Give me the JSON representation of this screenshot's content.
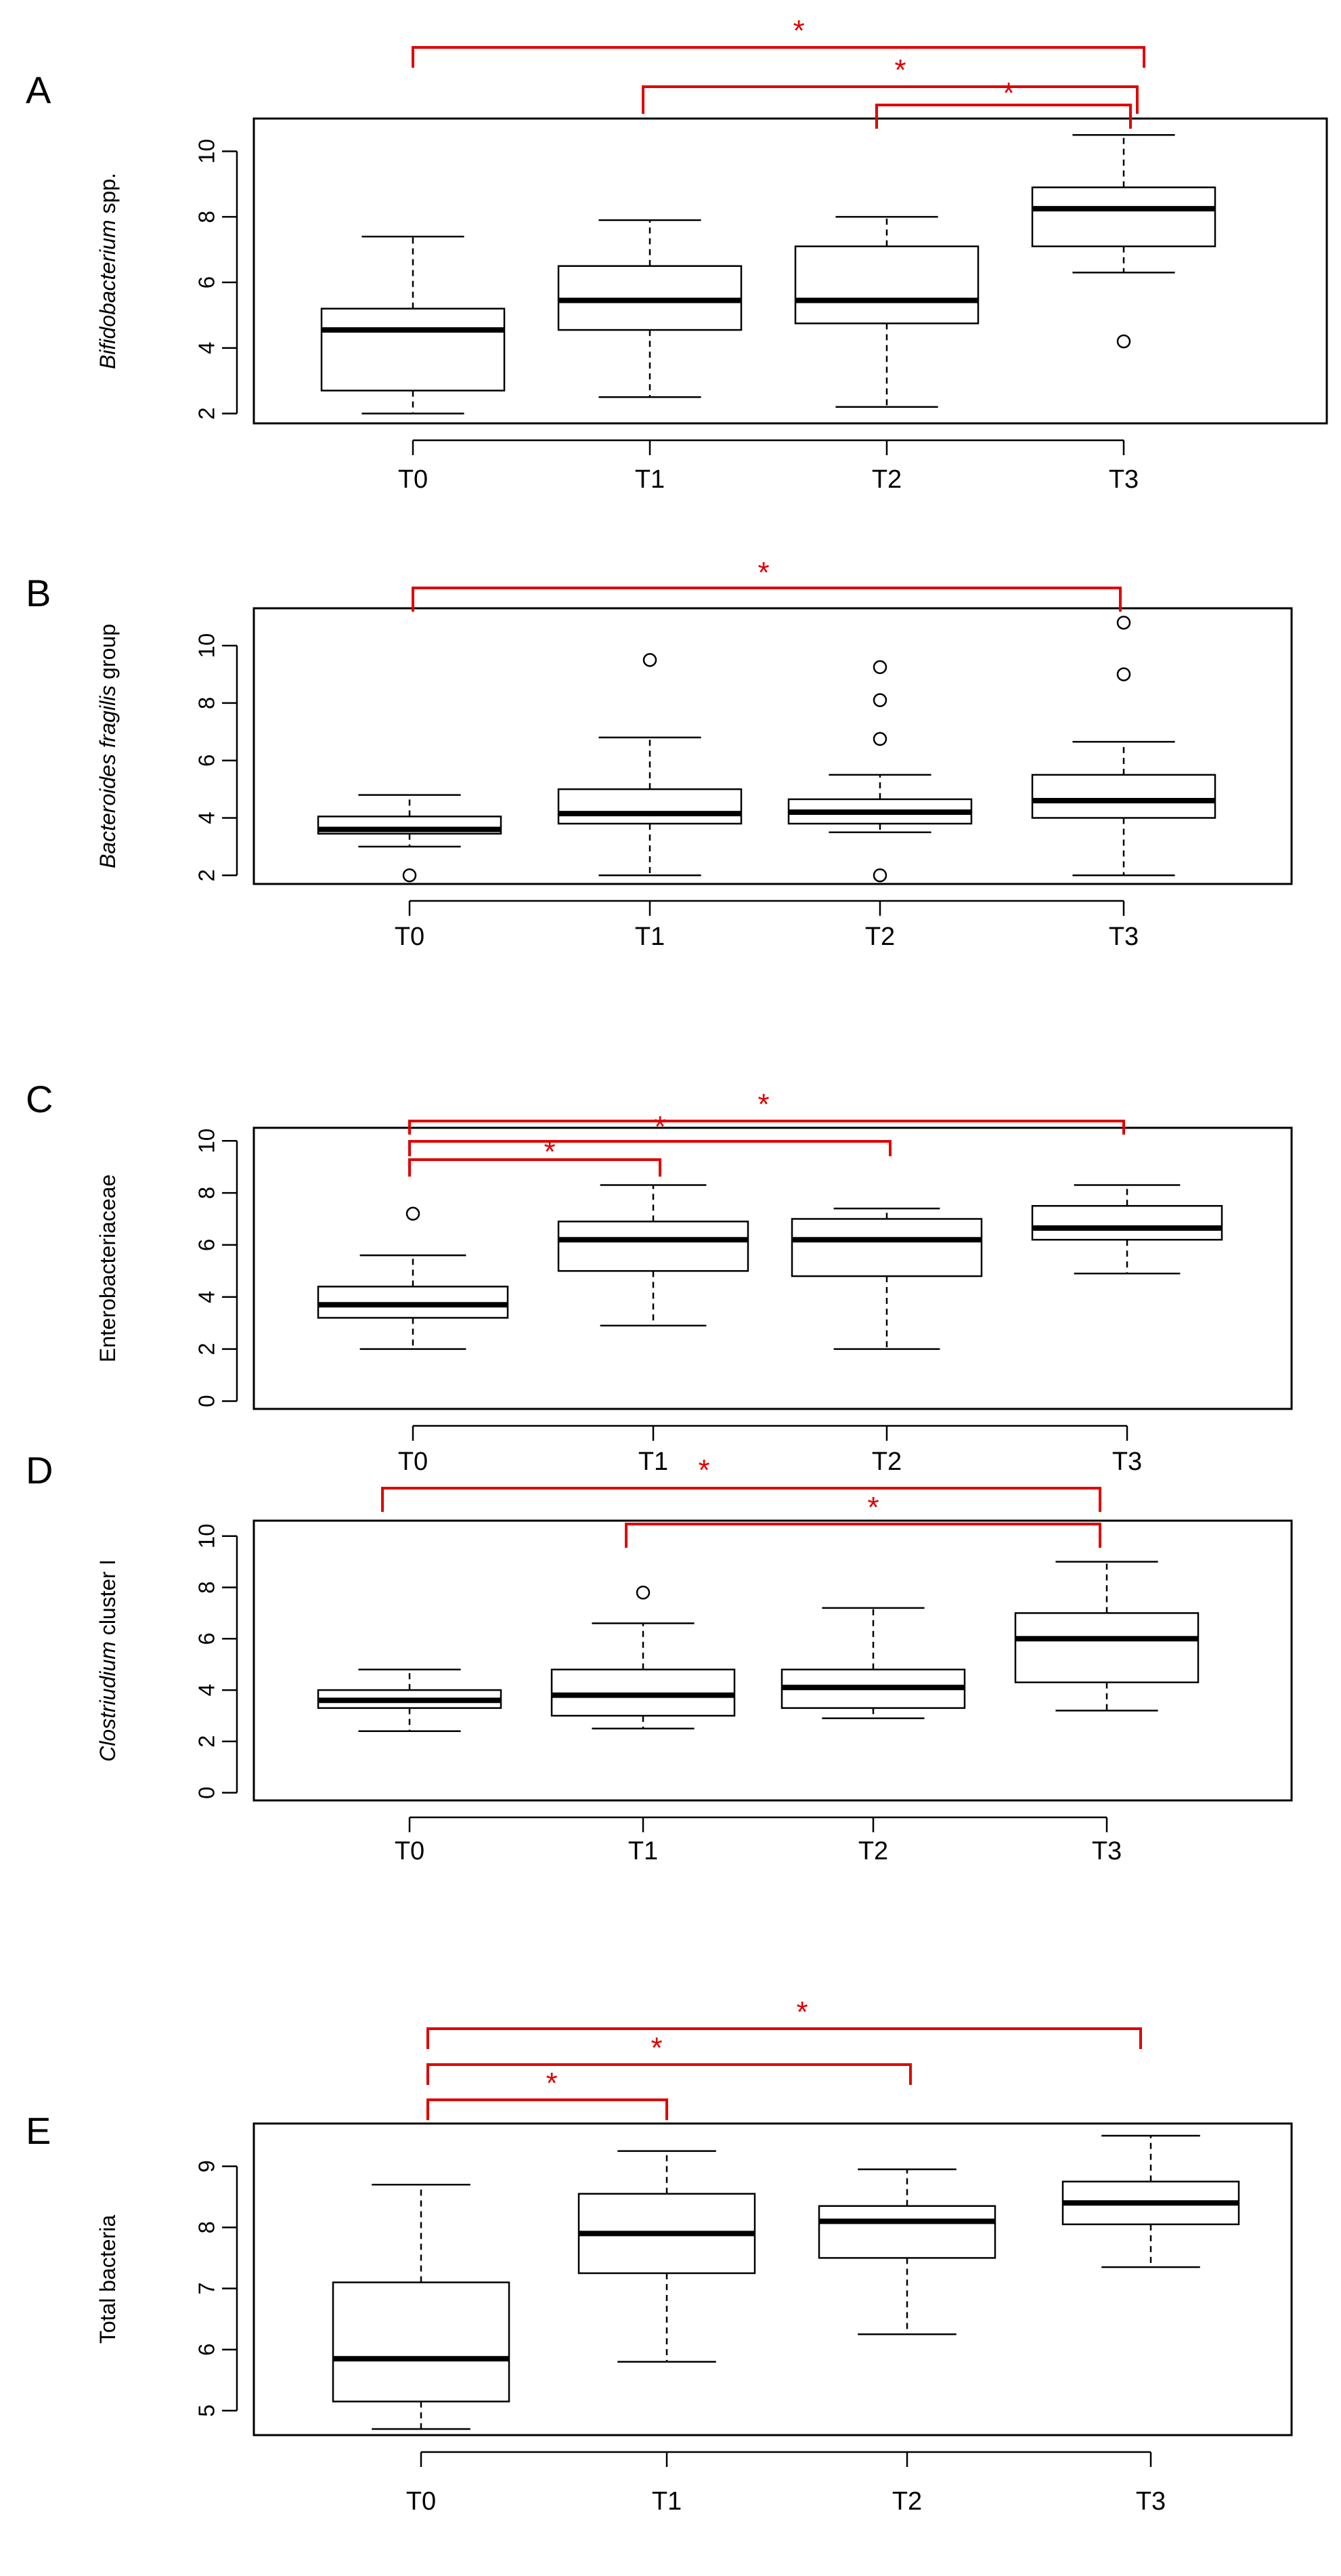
{
  "figure_description": "Five box-plot panels of bacterial counts at time points T0-T3",
  "colors": {
    "significance": "#e00000",
    "box": "#000000"
  },
  "chart_data": [
    {
      "type": "box",
      "panel": "A",
      "ylabel_italic": "Bifidobacterium",
      "ylabel_rest": " spp.",
      "categories": [
        "T0",
        "T1",
        "T2",
        "T3"
      ],
      "ylim": [
        1.7,
        11.0
      ],
      "yticks": [
        2,
        4,
        6,
        8,
        10
      ],
      "boxes": [
        {
          "min": 2.0,
          "q1": 2.7,
          "median": 4.55,
          "q3": 5.2,
          "max": 7.4,
          "outliers": []
        },
        {
          "min": 2.5,
          "q1": 4.55,
          "median": 5.45,
          "q3": 6.5,
          "max": 7.9,
          "outliers": []
        },
        {
          "min": 2.2,
          "q1": 4.75,
          "median": 5.45,
          "q3": 7.1,
          "max": 8.0,
          "outliers": []
        },
        {
          "min": 6.3,
          "q1": 7.1,
          "median": 8.25,
          "q3": 8.9,
          "max": 10.5,
          "outliers": [
            4.2
          ]
        }
      ],
      "significance": [
        {
          "from": "T0",
          "to": "T3",
          "label": "*"
        },
        {
          "from": "T1",
          "to": "T3",
          "label": "*"
        },
        {
          "from": "T2",
          "to": "T3",
          "label": "*"
        }
      ]
    },
    {
      "type": "box",
      "panel": "B",
      "ylabel_italic": "Bacteroides fragilis",
      "ylabel_rest": " group",
      "categories": [
        "T0",
        "T1",
        "T2",
        "T3"
      ],
      "ylim": [
        1.7,
        11.3
      ],
      "yticks": [
        2,
        4,
        6,
        8,
        10
      ],
      "boxes": [
        {
          "min": 3.0,
          "q1": 3.45,
          "median": 3.6,
          "q3": 4.05,
          "max": 4.8,
          "outliers": [
            2.0
          ]
        },
        {
          "min": 2.0,
          "q1": 3.8,
          "median": 4.15,
          "q3": 5.0,
          "max": 6.8,
          "outliers": [
            9.5
          ]
        },
        {
          "min": 3.5,
          "q1": 3.8,
          "median": 4.2,
          "q3": 4.65,
          "max": 5.5,
          "outliers": [
            6.75,
            8.1,
            9.25,
            2.0
          ]
        },
        {
          "min": 2.0,
          "q1": 4.0,
          "median": 4.6,
          "q3": 5.5,
          "max": 6.65,
          "outliers": [
            9.0,
            10.8
          ]
        }
      ],
      "significance": [
        {
          "from": "T0",
          "to": "T3",
          "label": "*"
        }
      ]
    },
    {
      "type": "box",
      "panel": "C",
      "ylabel_italic": "",
      "ylabel_rest": "Enterobacteriaceae",
      "categories": [
        "T0",
        "T1",
        "T2",
        "T3"
      ],
      "ylim": [
        -0.3,
        10.5
      ],
      "yticks": [
        0,
        2,
        4,
        6,
        8,
        10
      ],
      "boxes": [
        {
          "min": 2.0,
          "q1": 3.2,
          "median": 3.7,
          "q3": 4.4,
          "max": 5.6,
          "outliers": [
            7.2
          ]
        },
        {
          "min": 2.9,
          "q1": 5.0,
          "median": 6.2,
          "q3": 6.9,
          "max": 8.3,
          "outliers": []
        },
        {
          "min": 2.0,
          "q1": 4.8,
          "median": 6.2,
          "q3": 7.0,
          "max": 7.4,
          "outliers": []
        },
        {
          "min": 4.9,
          "q1": 6.2,
          "median": 6.65,
          "q3": 7.5,
          "max": 8.3,
          "outliers": []
        }
      ],
      "significance": [
        {
          "from": "T0",
          "to": "T3",
          "label": "*"
        },
        {
          "from": "T0",
          "to": "T2",
          "label": "*"
        },
        {
          "from": "T0",
          "to": "T1",
          "label": "*"
        }
      ]
    },
    {
      "type": "box",
      "panel": "D",
      "ylabel_italic": "Clostriudium",
      "ylabel_rest": " cluster I",
      "categories": [
        "T0",
        "T1",
        "T2",
        "T3"
      ],
      "ylim": [
        -0.3,
        10.6
      ],
      "yticks": [
        0,
        2,
        4,
        6,
        8,
        10
      ],
      "boxes": [
        {
          "min": 2.4,
          "q1": 3.3,
          "median": 3.6,
          "q3": 4.0,
          "max": 4.8,
          "outliers": []
        },
        {
          "min": 2.5,
          "q1": 3.0,
          "median": 3.8,
          "q3": 4.8,
          "max": 6.6,
          "outliers": [
            7.8
          ]
        },
        {
          "min": 2.9,
          "q1": 3.3,
          "median": 4.1,
          "q3": 4.8,
          "max": 7.2,
          "outliers": []
        },
        {
          "min": 3.2,
          "q1": 4.3,
          "median": 6.0,
          "q3": 7.0,
          "max": 9.0,
          "outliers": []
        }
      ],
      "significance": [
        {
          "from": "T0",
          "to": "T3",
          "label": "*"
        },
        {
          "from": "T1",
          "to": "T3",
          "label": "*"
        }
      ]
    },
    {
      "type": "box",
      "panel": "E",
      "ylabel_italic": "",
      "ylabel_rest": "Total bacteria",
      "categories": [
        "T0",
        "T1",
        "T2",
        "T3"
      ],
      "ylim": [
        4.6,
        9.7
      ],
      "yticks": [
        5,
        6,
        7,
        8,
        9
      ],
      "boxes": [
        {
          "min": 4.7,
          "q1": 5.15,
          "median": 5.85,
          "q3": 7.1,
          "max": 8.7,
          "outliers": []
        },
        {
          "min": 5.8,
          "q1": 7.25,
          "median": 7.9,
          "q3": 8.55,
          "max": 9.25,
          "outliers": []
        },
        {
          "min": 6.25,
          "q1": 7.5,
          "median": 8.1,
          "q3": 8.35,
          "max": 8.95,
          "outliers": []
        },
        {
          "min": 7.35,
          "q1": 8.05,
          "median": 8.4,
          "q3": 8.75,
          "max": 9.5,
          "outliers": []
        }
      ],
      "significance": [
        {
          "from": "T0",
          "to": "T3",
          "label": "*"
        },
        {
          "from": "T0",
          "to": "T2",
          "label": "*"
        },
        {
          "from": "T0",
          "to": "T1",
          "label": "*"
        }
      ]
    }
  ]
}
